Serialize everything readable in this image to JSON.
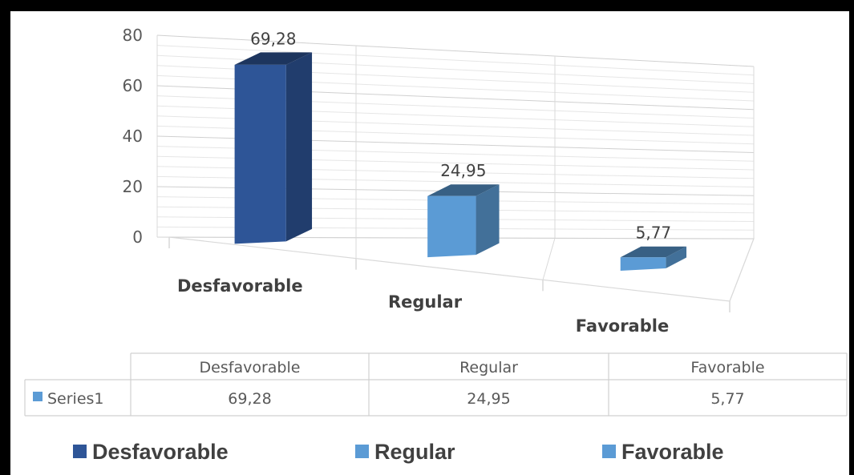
{
  "chart_data": {
    "type": "bar",
    "categories": [
      "Desfavorable",
      "Regular",
      "Favorable"
    ],
    "series": [
      {
        "name": "Series1",
        "values": [
          69.28,
          24.95,
          5.77
        ]
      }
    ],
    "data_labels": [
      "69,28",
      "24,95",
      "5,77"
    ],
    "y_ticks": [
      "80",
      "60",
      "40",
      "20",
      "0"
    ],
    "ylim": [
      0,
      80
    ],
    "grid": true,
    "three_d": true,
    "colors": [
      "#2e5597",
      "#5b9bd5",
      "#5b9bd5"
    ],
    "legend": {
      "position": "bottom",
      "entries": [
        "Desfavorable",
        "Regular",
        "Favorable"
      ]
    },
    "data_table": {
      "headers": [
        "Desfavorable",
        "Regular",
        "Favorable"
      ],
      "series_label": "Series1",
      "values": [
        "69,28",
        "24,95",
        "5,77"
      ]
    }
  }
}
